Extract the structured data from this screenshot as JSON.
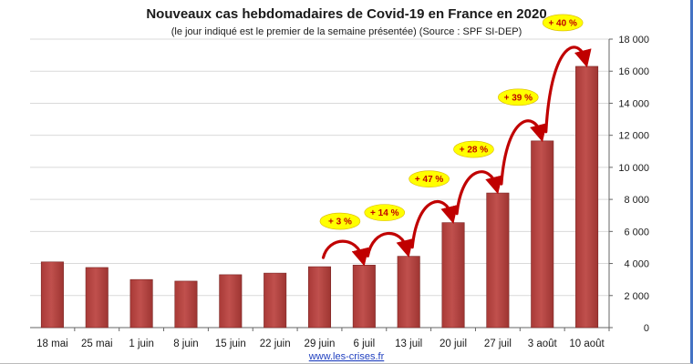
{
  "chart_data": {
    "type": "bar",
    "title": "Nouveaux cas hebdomadaires de Covid-19 en France en 2020",
    "subtitle": "(le jour indiqué est le premier de la semaine présentée) (Source : SPF SI-DEP)",
    "categories": [
      "18 mai",
      "25 mai",
      "1 juin",
      "8 juin",
      "15 juin",
      "22 juin",
      "29 juin",
      "6 juil",
      "13 juil",
      "20 juil",
      "27 juil",
      "3 août",
      "10 août"
    ],
    "values": [
      4100,
      3750,
      3000,
      2900,
      3300,
      3400,
      3800,
      3900,
      4450,
      6550,
      8400,
      11650,
      16300
    ],
    "ylim": [
      0,
      18000
    ],
    "yticks": [
      0,
      2000,
      4000,
      6000,
      8000,
      10000,
      12000,
      14000,
      16000,
      18000
    ],
    "ytick_labels": [
      "0",
      "2 000",
      "4 000",
      "6 000",
      "8 000",
      "10 000",
      "12 000",
      "14 000",
      "16 000",
      "18 000"
    ],
    "y_axis_side": "right",
    "xlabel": "",
    "ylabel": "",
    "grid": true,
    "bar_color": "#c0504d",
    "annotations": [
      {
        "from_index": 6,
        "to_index": 7,
        "label": "+ 3 %"
      },
      {
        "from_index": 7,
        "to_index": 8,
        "label": "+ 14 %"
      },
      {
        "from_index": 8,
        "to_index": 9,
        "label": "+ 47 %"
      },
      {
        "from_index": 9,
        "to_index": 10,
        "label": "+ 28 %"
      },
      {
        "from_index": 10,
        "to_index": 11,
        "label": "+ 39 %"
      },
      {
        "from_index": 11,
        "to_index": 12,
        "label": "+ 40 %"
      }
    ],
    "annotation_bg": "#ffff00",
    "annotation_color": "#c00000"
  },
  "source_link": "www.les-crises.fr"
}
